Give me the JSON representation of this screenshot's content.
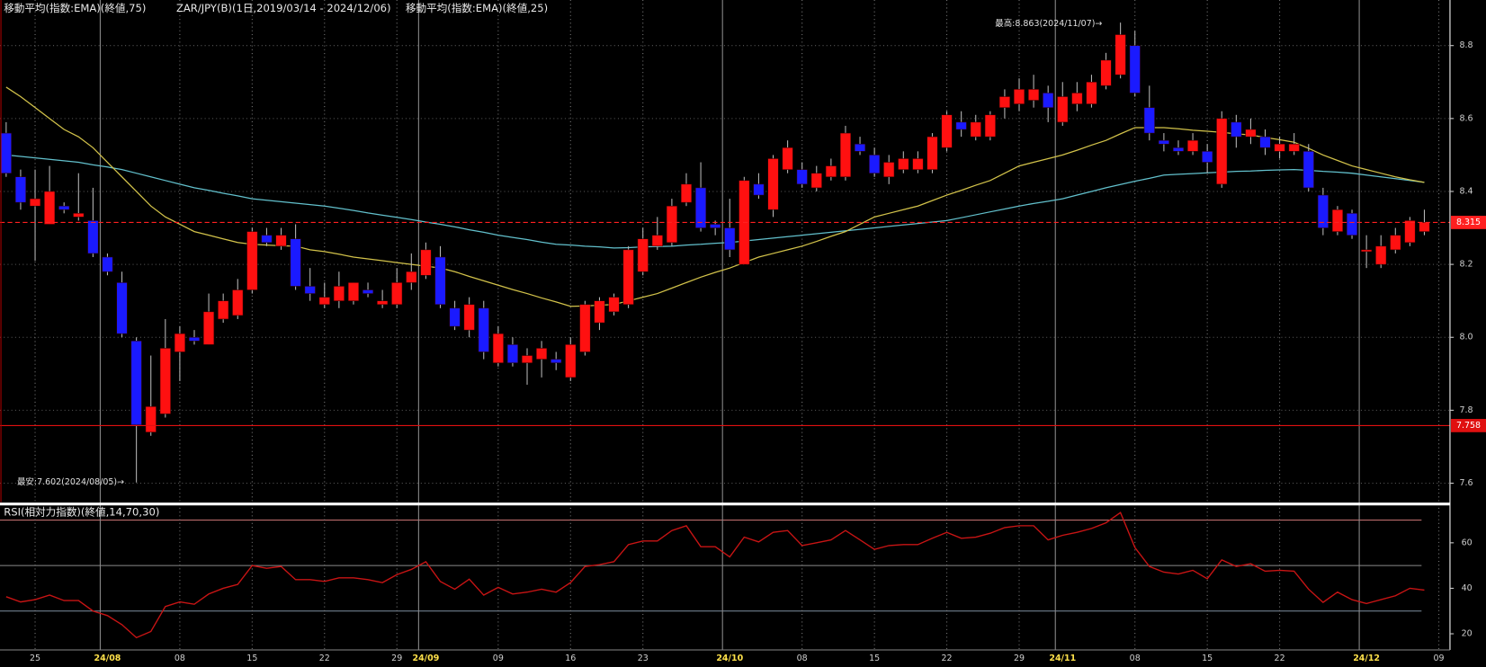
{
  "chart_data": [
    {
      "type": "candlestick",
      "title": "ZAR/JPY(B)(1日,2019/03/14 - 2024/12/06)",
      "categories": [
        null,
        null,
        "25",
        null,
        null,
        null,
        null,
        "24/08",
        null,
        null,
        null,
        null,
        "08",
        null,
        null,
        null,
        null,
        "15",
        null,
        null,
        null,
        null,
        "22",
        null,
        null,
        null,
        null,
        "29",
        null,
        "24/09",
        null,
        null,
        null,
        null,
        "09",
        null,
        null,
        null,
        null,
        "16",
        null,
        null,
        null,
        null,
        "23",
        null,
        null,
        null,
        null,
        null,
        "24/10",
        null,
        null,
        null,
        null,
        "08",
        null,
        null,
        null,
        null,
        "15",
        null,
        null,
        null,
        null,
        "22",
        null,
        null,
        null,
        null,
        "29",
        null,
        null,
        "24/11",
        null,
        null,
        null,
        null,
        "08",
        null,
        null,
        null,
        null,
        "15",
        null,
        null,
        null,
        null,
        "22",
        null,
        null,
        null,
        null,
        null,
        "24/12",
        null,
        null,
        null,
        null,
        "09"
      ],
      "open": [
        8.56,
        8.44,
        8.36,
        8.31,
        8.36,
        8.33,
        8.32,
        8.22,
        8.15,
        7.99,
        7.74,
        7.79,
        7.96,
        8.0,
        7.98,
        8.05,
        8.06,
        8.13,
        8.28,
        8.25,
        8.27,
        8.14,
        8.09,
        8.1,
        8.1,
        8.13,
        8.09,
        8.09,
        8.15,
        8.17,
        8.22,
        8.08,
        8.02,
        8.08,
        7.93,
        7.98,
        7.93,
        7.94,
        7.94,
        7.89,
        7.96,
        8.04,
        8.07,
        8.09,
        8.18,
        8.25,
        8.26,
        8.37,
        8.41,
        8.31,
        8.3,
        8.2,
        8.42,
        8.35,
        8.46,
        8.46,
        8.41,
        8.44,
        8.44,
        8.53,
        8.5,
        8.44,
        8.46,
        8.46,
        8.46,
        8.52,
        8.59,
        8.55,
        8.55,
        8.63,
        8.64,
        8.65,
        8.67,
        8.59,
        8.64,
        8.64,
        8.69,
        8.72,
        8.8,
        8.63,
        8.54,
        8.52,
        8.51,
        8.51,
        8.42,
        8.59,
        8.55,
        8.55,
        8.51,
        8.51,
        8.51,
        8.39,
        8.29,
        8.34,
        8.235,
        8.2,
        8.24,
        8.26,
        8.29,
        null
      ],
      "high": [
        8.59,
        8.46,
        8.46,
        8.47,
        8.37,
        8.45,
        8.41,
        8.23,
        8.18,
        8.0,
        7.95,
        8.05,
        8.03,
        8.02,
        8.12,
        8.12,
        8.16,
        8.3,
        8.3,
        8.3,
        8.31,
        8.19,
        8.15,
        8.18,
        8.15,
        8.15,
        8.13,
        8.19,
        8.23,
        8.26,
        8.25,
        8.1,
        8.11,
        8.1,
        8.03,
        8.0,
        7.97,
        7.99,
        7.96,
        8.0,
        8.1,
        8.11,
        8.12,
        8.25,
        8.3,
        8.33,
        8.38,
        8.45,
        8.48,
        8.32,
        8.38,
        8.44,
        8.45,
        8.5,
        8.54,
        8.48,
        8.47,
        8.49,
        8.58,
        8.55,
        8.52,
        8.5,
        8.51,
        8.51,
        8.56,
        8.62,
        8.62,
        8.61,
        8.62,
        8.68,
        8.71,
        8.72,
        8.69,
        8.7,
        8.7,
        8.72,
        8.78,
        8.863,
        8.84,
        8.69,
        8.56,
        8.54,
        8.56,
        8.53,
        8.62,
        8.61,
        8.6,
        8.57,
        8.55,
        8.56,
        8.53,
        8.41,
        8.36,
        8.35,
        8.28,
        8.28,
        8.3,
        8.33,
        8.35,
        null
      ],
      "low": [
        8.44,
        8.35,
        8.21,
        8.31,
        8.34,
        8.32,
        8.22,
        8.17,
        8.0,
        7.602,
        7.73,
        7.78,
        7.88,
        7.98,
        7.98,
        8.04,
        8.05,
        8.12,
        8.25,
        8.24,
        8.13,
        8.1,
        8.08,
        8.08,
        8.09,
        8.11,
        8.08,
        8.08,
        8.13,
        8.16,
        8.08,
        8.02,
        8.0,
        7.94,
        7.92,
        7.92,
        7.87,
        7.89,
        7.91,
        7.88,
        7.95,
        8.02,
        8.06,
        8.08,
        8.17,
        8.24,
        8.25,
        8.36,
        8.29,
        8.28,
        8.22,
        8.2,
        8.38,
        8.33,
        8.45,
        8.41,
        8.4,
        8.43,
        8.43,
        8.5,
        8.44,
        8.42,
        8.45,
        8.45,
        8.45,
        8.51,
        8.55,
        8.54,
        8.54,
        8.6,
        8.62,
        8.63,
        8.59,
        8.58,
        8.62,
        8.63,
        8.68,
        8.71,
        8.66,
        8.54,
        8.51,
        8.5,
        8.5,
        8.45,
        8.41,
        8.52,
        8.53,
        8.5,
        8.49,
        8.5,
        8.4,
        8.28,
        8.28,
        8.27,
        8.19,
        8.19,
        8.23,
        8.25,
        8.28,
        null
      ],
      "close": [
        8.45,
        8.37,
        8.38,
        8.4,
        8.35,
        8.34,
        8.23,
        8.18,
        8.01,
        7.76,
        7.81,
        7.97,
        8.01,
        7.99,
        8.07,
        8.1,
        8.13,
        8.29,
        8.26,
        8.28,
        8.14,
        8.12,
        8.11,
        8.14,
        8.15,
        8.12,
        8.1,
        8.15,
        8.18,
        8.24,
        8.09,
        8.03,
        8.09,
        7.96,
        8.01,
        7.93,
        7.95,
        7.97,
        7.93,
        7.98,
        8.09,
        8.1,
        8.11,
        8.24,
        8.27,
        8.28,
        8.36,
        8.42,
        8.3,
        8.3,
        8.24,
        8.43,
        8.39,
        8.49,
        8.52,
        8.42,
        8.45,
        8.47,
        8.56,
        8.51,
        8.45,
        8.48,
        8.49,
        8.49,
        8.55,
        8.61,
        8.57,
        8.59,
        8.61,
        8.66,
        8.68,
        8.68,
        8.63,
        8.66,
        8.67,
        8.7,
        8.76,
        8.83,
        8.67,
        8.56,
        8.53,
        8.51,
        8.54,
        8.48,
        8.6,
        8.55,
        8.57,
        8.52,
        8.53,
        8.53,
        8.41,
        8.3,
        8.35,
        8.28,
        8.24,
        8.25,
        8.28,
        8.32,
        8.315,
        null
      ],
      "up_color": "#ff1010",
      "down_color": "#1a1aff",
      "wick_color": "#b8b8b8",
      "series": [
        {
          "name": "移動平均(指数:EMA)(終値,75)",
          "color": "#62c0cc",
          "values": [
            8.5,
            8.496,
            8.492,
            8.488,
            8.484,
            8.48,
            8.473,
            8.467,
            8.46,
            8.45,
            8.44,
            8.43,
            8.42,
            8.41,
            8.403,
            8.395,
            8.388,
            8.38,
            8.376,
            8.372,
            8.368,
            8.364,
            8.36,
            8.354,
            8.348,
            8.341,
            8.335,
            8.329,
            8.323,
            8.316,
            8.31,
            8.303,
            8.295,
            8.288,
            8.28,
            8.274,
            8.268,
            8.261,
            8.255,
            8.253,
            8.25,
            8.248,
            8.245,
            8.246,
            8.248,
            8.249,
            8.25,
            8.253,
            8.255,
            8.258,
            8.26,
            8.264,
            8.268,
            8.272,
            8.276,
            8.28,
            8.284,
            8.288,
            8.292,
            8.296,
            8.3,
            8.304,
            8.308,
            8.312,
            8.316,
            8.32,
            8.328,
            8.336,
            8.344,
            8.352,
            8.36,
            8.367,
            8.373,
            8.38,
            8.39,
            8.4,
            8.41,
            8.419,
            8.428,
            8.436,
            8.445,
            8.447,
            8.449,
            8.451,
            8.453,
            8.455,
            8.456,
            8.458,
            8.459,
            8.46,
            8.458,
            8.455,
            8.453,
            8.45,
            8.445,
            8.44,
            8.435,
            8.43,
            8.425,
            null
          ]
        },
        {
          "name": "移動平均(指数:EMA)(終値,25)",
          "color": "#d2c24a",
          "values": [
            8.686,
            8.66,
            8.63,
            8.6,
            8.57,
            8.55,
            8.52,
            8.48,
            8.44,
            8.4,
            8.36,
            8.33,
            8.31,
            8.29,
            8.28,
            8.27,
            8.26,
            8.255,
            8.253,
            8.251,
            8.25,
            8.24,
            8.235,
            8.228,
            8.22,
            8.215,
            8.21,
            8.205,
            8.2,
            8.195,
            8.19,
            8.18,
            8.167,
            8.155,
            8.143,
            8.131,
            8.12,
            8.108,
            8.097,
            8.085,
            8.086,
            8.088,
            8.09,
            8.1,
            8.11,
            8.12,
            8.135,
            8.15,
            8.165,
            8.178,
            8.19,
            8.205,
            8.22,
            8.23,
            8.24,
            8.25,
            8.263,
            8.277,
            8.29,
            8.31,
            8.33,
            8.34,
            8.35,
            8.36,
            8.375,
            8.39,
            8.403,
            8.417,
            8.43,
            8.45,
            8.47,
            8.48,
            8.49,
            8.5,
            8.513,
            8.527,
            8.54,
            8.558,
            8.575,
            8.575,
            8.575,
            8.572,
            8.568,
            8.565,
            8.562,
            8.558,
            8.555,
            8.548,
            8.542,
            8.535,
            8.518,
            8.5,
            8.485,
            8.47,
            8.46,
            8.45,
            8.44,
            8.432,
            8.425,
            null
          ]
        }
      ],
      "ylim": [
        7.548,
        8.925
      ],
      "yticks": [
        8.8,
        8.6,
        8.4,
        8.2,
        {
          "value": 8,
          "label": "8.0"
        },
        7.8,
        7.6
      ],
      "grid": true,
      "price_lines": [
        {
          "value": 8.315,
          "color": "#ff2020",
          "dash": true
        },
        {
          "value": 7.758,
          "color": "#e01010",
          "dash": false
        }
      ],
      "annotations": [
        "最高:8.863(2024/11/07)→",
        "最安:7.602(2024/08/05)→"
      ]
    },
    {
      "type": "line",
      "title": "RSI(相対力指数)(終値,14,70,30)",
      "color": "#c81414",
      "values": [
        36.3,
        34,
        35,
        37,
        34.6,
        34.6,
        30,
        28,
        24,
        18.3,
        21,
        32,
        34,
        33,
        37.5,
        40,
        41.7,
        50,
        48.8,
        49.6,
        43.8,
        43.8,
        43,
        44.6,
        44.6,
        43.8,
        42.5,
        46,
        48.3,
        51.7,
        43,
        39.6,
        44,
        37,
        40.4,
        37.5,
        38.3,
        39.6,
        38.3,
        42.5,
        49.6,
        50.4,
        51.7,
        59.2,
        60.8,
        60.8,
        65.4,
        67.5,
        58.3,
        58.3,
        53.8,
        62.5,
        60.4,
        64.6,
        65.4,
        58.8,
        60,
        61.3,
        65.4,
        61.3,
        57.1,
        58.8,
        59.2,
        59.2,
        62,
        64.6,
        62,
        62.5,
        64.2,
        66.7,
        67.5,
        67.5,
        61.3,
        63.3,
        64.6,
        66.3,
        68.8,
        73.3,
        57.9,
        49.6,
        47.1,
        46.3,
        47.9,
        44.2,
        52.5,
        49.6,
        50.8,
        47.5,
        47.9,
        47.5,
        39.6,
        33.8,
        38.3,
        35,
        33.3,
        35,
        36.7,
        40,
        39.2,
        null
      ],
      "ylim": [
        13.3,
        75.8
      ],
      "yticks": [
        60,
        40,
        20
      ],
      "levels": [
        {
          "value": 70,
          "color": "#b86a6a"
        },
        {
          "value": 50,
          "color": "#8a8a8a"
        },
        {
          "value": 30,
          "color": "#7e8ea0"
        }
      ]
    }
  ]
}
